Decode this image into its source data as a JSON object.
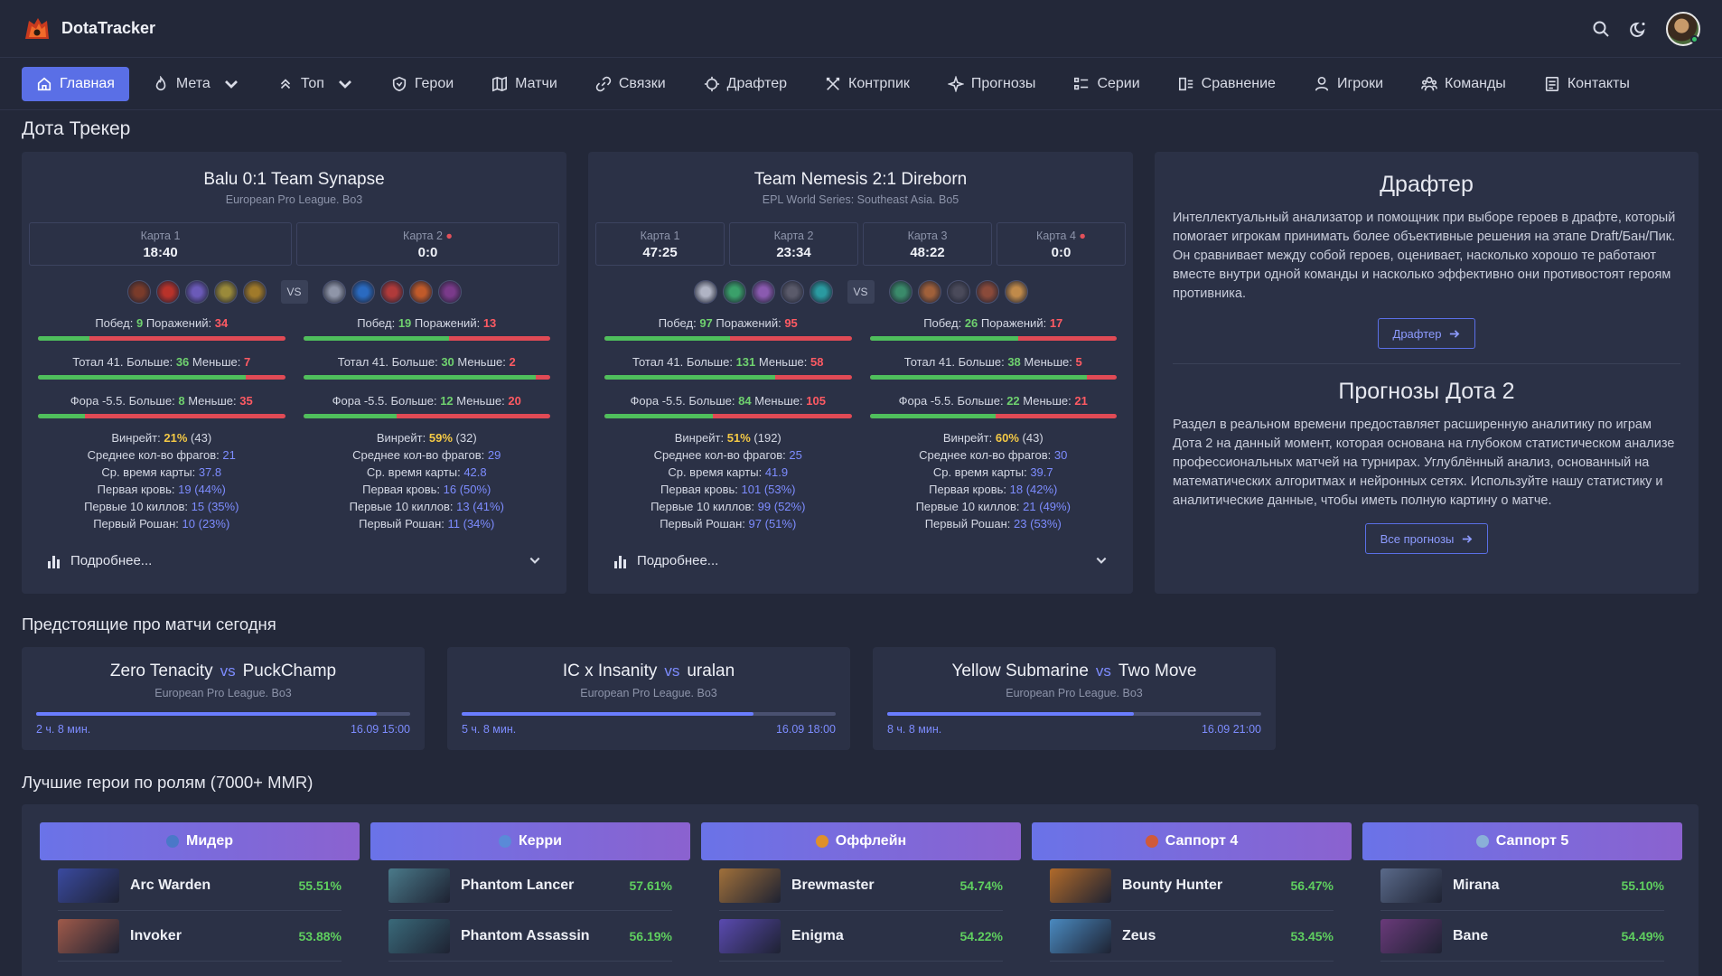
{
  "app": {
    "name": "DotaTracker"
  },
  "nav": [
    {
      "label": "Главная",
      "icon": "home-icon",
      "active": true
    },
    {
      "label": "Мета",
      "icon": "flame-icon",
      "dropdown": true
    },
    {
      "label": "Топ",
      "icon": "chevrons-up-icon",
      "dropdown": true
    },
    {
      "label": "Герои",
      "icon": "shield-icon"
    },
    {
      "label": "Матчи",
      "icon": "map-icon"
    },
    {
      "label": "Связки",
      "icon": "link-icon"
    },
    {
      "label": "Драфтер",
      "icon": "crosshair-icon"
    },
    {
      "label": "Контрпик",
      "icon": "swords-icon"
    },
    {
      "label": "Прогнозы",
      "icon": "spark-icon"
    },
    {
      "label": "Серии",
      "icon": "list-icon"
    },
    {
      "label": "Сравнение",
      "icon": "compare-icon"
    },
    {
      "label": "Игроки",
      "icon": "user-icon"
    },
    {
      "label": "Команды",
      "icon": "users-icon"
    },
    {
      "label": "Контакты",
      "icon": "contact-icon"
    }
  ],
  "page_title": "Дота Трекер",
  "matches": [
    {
      "title": "Balu 0:1 Team Synapse",
      "league": "European Pro League. Bo3",
      "maps": [
        {
          "label": "Карта 1",
          "value": "18:40",
          "live": false
        },
        {
          "label": "Карта 2",
          "value": "0:0",
          "live": true
        }
      ],
      "vs": "VS",
      "heroes_left": [
        "#7a3b2a",
        "#b8322a",
        "#6b5ab8",
        "#9a8a3a",
        "#a07a2a"
      ],
      "heroes_right": [
        "#8f95a8",
        "#2a6ac0",
        "#b03a3a",
        "#c05a2a",
        "#7a3a8a"
      ],
      "teams": [
        {
          "wins_label": "Побед:",
          "wins": "9",
          "losses_label": "Поражений:",
          "losses": "34",
          "wins_frac": 0.21,
          "total_label": "Тотал 41. Больше:",
          "total_over": "36",
          "under_label": "Меньше:",
          "total_under": "7",
          "total_frac": 0.84,
          "fora_label": "Фора -5.5. Больше:",
          "fora_over": "8",
          "fora_under": "35",
          "fora_frac": 0.19,
          "winrate_label": "Винрейт:",
          "winrate": "21%",
          "winrate_n": "(43)",
          "frags_label": "Среднее кол-во фрагов:",
          "frags": "21",
          "time_label": "Ср. время карты:",
          "time": "37.8",
          "fb_label": "Первая кровь:",
          "fb": "19 (44%)",
          "k10_label": "Первые 10 киллов:",
          "k10": "15 (35%)",
          "rosh_label": "Первый Рошан:",
          "rosh": "10 (23%)"
        },
        {
          "wins_label": "Побед:",
          "wins": "19",
          "losses_label": "Поражений:",
          "losses": "13",
          "wins_frac": 0.59,
          "total_label": "Тотал 41. Больше:",
          "total_over": "30",
          "under_label": "Меньше:",
          "total_under": "2",
          "total_frac": 0.94,
          "fora_label": "Фора -5.5. Больше:",
          "fora_over": "12",
          "fora_under": "20",
          "fora_frac": 0.38,
          "winrate_label": "Винрейт:",
          "winrate": "59%",
          "winrate_n": "(32)",
          "frags_label": "Среднее кол-во фрагов:",
          "frags": "29",
          "time_label": "Ср. время карты:",
          "time": "42.8",
          "fb_label": "Первая кровь:",
          "fb": "16 (50%)",
          "k10_label": "Первые 10 киллов:",
          "k10": "13 (41%)",
          "rosh_label": "Первый Рошан:",
          "rosh": "11 (34%)"
        }
      ],
      "more_label": "Подробнее..."
    },
    {
      "title": "Team Nemesis 2:1 Direborn",
      "league": "EPL World Series: Southeast Asia. Bo5",
      "maps": [
        {
          "label": "Карта 1",
          "value": "47:25",
          "live": false
        },
        {
          "label": "Карта 2",
          "value": "23:34",
          "live": false
        },
        {
          "label": "Карта 3",
          "value": "48:22",
          "live": false
        },
        {
          "label": "Карта 4",
          "value": "0:0",
          "live": true
        }
      ],
      "vs": "VS",
      "heroes_left": [
        "#b0b4c4",
        "#3aa06a",
        "#8a5ab0",
        "#5a5a6a",
        "#2a9aa0"
      ],
      "heroes_right": [
        "#3a8a6a",
        "#a0603a",
        "#4a4a5a",
        "#8a4a3a",
        "#c08a4a"
      ],
      "teams": [
        {
          "wins_label": "Побед:",
          "wins": "97",
          "losses_label": "Поражений:",
          "losses": "95",
          "wins_frac": 0.51,
          "total_label": "Тотал 41. Больше:",
          "total_over": "131",
          "under_label": "Меньше:",
          "total_under": "58",
          "total_frac": 0.69,
          "fora_label": "Фора -5.5. Больше:",
          "fora_over": "84",
          "fora_under": "105",
          "fora_frac": 0.44,
          "winrate_label": "Винрейт:",
          "winrate": "51%",
          "winrate_n": "(192)",
          "frags_label": "Среднее кол-во фрагов:",
          "frags": "25",
          "time_label": "Ср. время карты:",
          "time": "41.9",
          "fb_label": "Первая кровь:",
          "fb": "101 (53%)",
          "k10_label": "Первые 10 киллов:",
          "k10": "99 (52%)",
          "rosh_label": "Первый Рошан:",
          "rosh": "97 (51%)"
        },
        {
          "wins_label": "Побед:",
          "wins": "26",
          "losses_label": "Поражений:",
          "losses": "17",
          "wins_frac": 0.6,
          "total_label": "Тотал 41. Больше:",
          "total_over": "38",
          "under_label": "Меньше:",
          "total_under": "5",
          "total_frac": 0.88,
          "fora_label": "Фора -5.5. Больше:",
          "fora_over": "22",
          "fora_under": "21",
          "fora_frac": 0.51,
          "winrate_label": "Винрейт:",
          "winrate": "60%",
          "winrate_n": "(43)",
          "frags_label": "Среднее кол-во фрагов:",
          "frags": "30",
          "time_label": "Ср. время карты:",
          "time": "39.7",
          "fb_label": "Первая кровь:",
          "fb": "18 (42%)",
          "k10_label": "Первые 10 киллов:",
          "k10": "21 (49%)",
          "rosh_label": "Первый Рошан:",
          "rosh": "23 (53%)"
        }
      ],
      "more_label": "Подробнее..."
    }
  ],
  "side": {
    "drafter_title": "Драфтер",
    "drafter_text": "Интеллектуальный анализатор и помощник при выборе героев в драфте, который помогает игрокам принимать более объективные решения на этапе Draft/Бан/Пик. Он сравнивает между собой героев, оценивает, насколько хорошо те работают вместе внутри одной команды и насколько эффективно они противостоят героям противника.",
    "drafter_button": "Драфтер",
    "forecast_title": "Прогнозы Дота 2",
    "forecast_text": "Раздел в реальном времени предоставляет расширенную аналитику по играм Дота 2 на данный момент, которая основана на глубоком статистическом анализе профессиональных матчей на турнирах. Углублённый анализ, основанный на математических алгоритмах и нейронных сетях. Используйте нашу статистику и аналитические данные, чтобы иметь полную картину о матче.",
    "forecast_button": "Все прогнозы"
  },
  "upcoming_title": "Предстоящие про матчи сегодня",
  "upcoming": [
    {
      "team1": "Zero Tenacity",
      "vs": "vs",
      "team2": "PuckChamp",
      "league": "European Pro League. Bo3",
      "countdown": "2 ч. 8 мин.",
      "date": "16.09 15:00",
      "progress": 0.91
    },
    {
      "team1": "IC x Insanity",
      "vs": "vs",
      "team2": "uralan",
      "league": "European Pro League. Bo3",
      "countdown": "5 ч. 8 мин.",
      "date": "16.09 18:00",
      "progress": 0.78
    },
    {
      "team1": "Yellow Submarine",
      "vs": "vs",
      "team2": "Two Move",
      "league": "European Pro League. Bo3",
      "countdown": "8 ч. 8 мин.",
      "date": "16.09 21:00",
      "progress": 0.66
    }
  ],
  "roles_title": "Лучшие герои по ролям (7000+ MMR)",
  "roles": [
    {
      "name": "Мидер",
      "dot": "#4a78c8",
      "heroes": [
        {
          "name": "Arc Warden",
          "wr": "55.51%",
          "color": "#3a4aa0"
        },
        {
          "name": "Invoker",
          "wr": "53.88%",
          "color": "#a05a4a"
        }
      ]
    },
    {
      "name": "Керри",
      "dot": "#5a8ad8",
      "heroes": [
        {
          "name": "Phantom Lancer",
          "wr": "57.61%",
          "color": "#4a7a8a"
        },
        {
          "name": "Phantom Assassin",
          "wr": "56.19%",
          "color": "#3a6a7a"
        }
      ]
    },
    {
      "name": "Оффлейн",
      "dot": "#e0902a",
      "heroes": [
        {
          "name": "Brewmaster",
          "wr": "54.74%",
          "color": "#a0703a"
        },
        {
          "name": "Enigma",
          "wr": "54.22%",
          "color": "#5a4ab0"
        }
      ]
    },
    {
      "name": "Саппорт 4",
      "dot": "#d05a3a",
      "heroes": [
        {
          "name": "Bounty Hunter",
          "wr": "56.47%",
          "color": "#b06a2a"
        },
        {
          "name": "Zeus",
          "wr": "53.45%",
          "color": "#4a8ac0"
        }
      ]
    },
    {
      "name": "Саппорт 5",
      "dot": "#8ab0d8",
      "heroes": [
        {
          "name": "Mirana",
          "wr": "55.10%",
          "color": "#5a6a8a"
        },
        {
          "name": "Bane",
          "wr": "54.49%",
          "color": "#6a3a7a"
        }
      ]
    }
  ]
}
